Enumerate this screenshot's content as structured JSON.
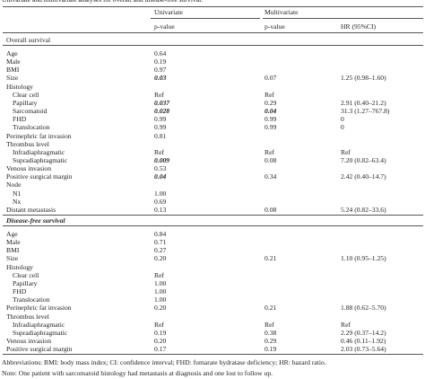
{
  "caption": "Univariate and multivariate analyses for overall and disease-free survival.",
  "header": {
    "univariate": "Univariate",
    "multivariate": "Multivariate",
    "uni_p": "p-value",
    "multi_p": "p-value",
    "hr": "HR (95%CI)"
  },
  "sections": [
    {
      "title": "Overall survival",
      "title_italic": false,
      "rows": [
        {
          "cells": [
            "Age",
            "0.64"
          ]
        },
        {
          "cells": [
            "Male",
            "0.19"
          ]
        },
        {
          "cells": [
            "BMI",
            "0.97"
          ]
        },
        {
          "cells": [
            "Size",
            "0.03",
            "0.07",
            "1.25 (0.98–1.60)"
          ],
          "em": [
            1
          ]
        },
        {
          "cells": [
            "Histology"
          ]
        },
        {
          "cells": [
            "Clear cell",
            "Ref",
            "Ref"
          ],
          "indent": true
        },
        {
          "cells": [
            "Papillary",
            "0.037",
            "0.29",
            "2.91 (0.40–21.2)"
          ],
          "indent": true,
          "em": [
            1
          ]
        },
        {
          "cells": [
            "Sarcomatoid",
            "0.028",
            "0.04",
            "31.3 (1.27–767.8)"
          ],
          "indent": true,
          "em": [
            1,
            2
          ]
        },
        {
          "cells": [
            "FHD",
            "0.99",
            "0.99",
            "0"
          ],
          "indent": true
        },
        {
          "cells": [
            "Translocation",
            "0.99",
            "0.99",
            "0"
          ],
          "indent": true
        },
        {
          "cells": [
            "Perinephric fat invasion",
            "0.81"
          ]
        },
        {
          "cells": [
            "Thrombus level"
          ]
        },
        {
          "cells": [
            "Infradiaphragmatic",
            "Ref",
            "Ref",
            "Ref"
          ],
          "indent": true
        },
        {
          "cells": [
            "Supradiaphragmatic",
            "0.009",
            "0.08",
            "7.20 (0.82–63.4)"
          ],
          "indent": true,
          "em": [
            1
          ]
        },
        {
          "cells": [
            "Venous invasion",
            "0.53"
          ]
        },
        {
          "cells": [
            "Positive surgical margin",
            "0.04",
            "0.34",
            "2.42 (0.40–14.7)"
          ],
          "em": [
            1
          ]
        },
        {
          "cells": [
            "Node"
          ]
        },
        {
          "cells": [
            "N1",
            "1.00"
          ],
          "indent": true
        },
        {
          "cells": [
            "Nx",
            "0.69"
          ],
          "indent": true
        },
        {
          "cells": [
            "Distant metastasis",
            "0.13",
            "0.08",
            "5.24 (0.82–33.6)"
          ]
        }
      ]
    },
    {
      "title": "Disease-free survival",
      "title_italic": true,
      "rows": [
        {
          "cells": [
            "Age",
            "0.84"
          ]
        },
        {
          "cells": [
            "Male",
            "0.71"
          ]
        },
        {
          "cells": [
            "BMI",
            "0.27"
          ]
        },
        {
          "cells": [
            "Size",
            "0.20",
            "0.21",
            "1.10 (0.95–1.25)"
          ]
        },
        {
          "cells": [
            "Histology"
          ]
        },
        {
          "cells": [
            "Clear cell",
            "Ref"
          ],
          "indent": true
        },
        {
          "cells": [
            "Papillary",
            "1.00"
          ],
          "indent": true
        },
        {
          "cells": [
            "FHD",
            "1.00"
          ],
          "indent": true
        },
        {
          "cells": [
            "Translocation",
            "1.00"
          ],
          "indent": true
        },
        {
          "cells": [
            "Perinephric fat invasion",
            "0.20",
            "0.21",
            "1.88 (0.62–5.70)"
          ]
        },
        {
          "cells": [
            "Thrombus level"
          ]
        },
        {
          "cells": [
            "Infradiaphragmatic",
            "Ref",
            "Ref",
            "Ref"
          ],
          "indent": true
        },
        {
          "cells": [
            "Supradiaphragmatic",
            "0.19",
            "0.38",
            "2.29 (0.37–14.2)"
          ],
          "indent": true
        },
        {
          "cells": [
            "Venous invasion",
            "0.20",
            "0.29",
            "0.46 (0.11–1.92)"
          ]
        },
        {
          "cells": [
            "Positive surgical margin",
            "0.17",
            "0.19",
            "2.03 (0.73–5.64)"
          ]
        }
      ]
    }
  ],
  "footnotes": [
    "Abbreviations: BMI: body mass index; CI: confidence interval; FHD: fumarate hydratase deficiency; HR: hazard ratio.",
    "Note: One patient with sarcomatoid histology had metastasis at diagnosis and one lost to follow up."
  ]
}
